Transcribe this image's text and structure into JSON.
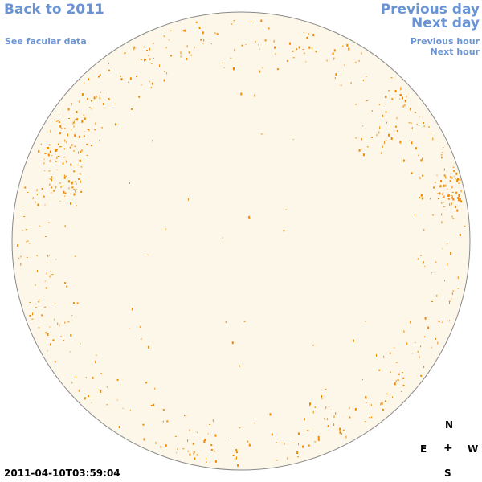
{
  "nav": {
    "back": "Back to 2011",
    "facular": "See facular data",
    "prev_day": "Previous day",
    "next_day": "Next day",
    "prev_hour": "Previous hour",
    "next_hour": "Next hour"
  },
  "compass": {
    "n": "N",
    "e": "E",
    "plus": "+",
    "w": "W",
    "s": "S"
  },
  "timestamp": "2011-04-10T03:59:04",
  "colors": {
    "disk": "#fdf7ea",
    "limb": "#8a8a8a",
    "feature": "#ef8a00",
    "link": "#6a93d4"
  }
}
